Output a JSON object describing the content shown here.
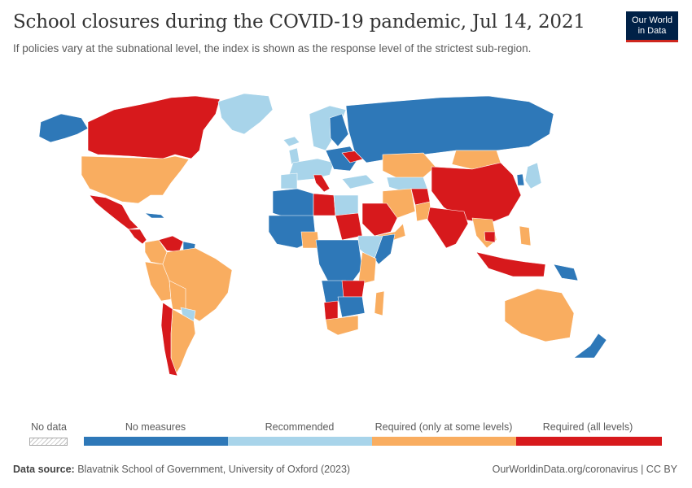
{
  "header": {
    "title": "School closures during the COVID-19 pandemic, Jul 14, 2021",
    "subtitle": "If policies vary at the subnational level, the index is shown as the response level of the strictest sub-region."
  },
  "logo": {
    "line1": "Our World",
    "line2": "in Data",
    "bg": "#002147",
    "accent": "#ce261e"
  },
  "legend": {
    "no_data": {
      "label": "No data"
    },
    "categories": [
      {
        "label": "No measures",
        "color": "#2e78b8"
      },
      {
        "label": "Recommended",
        "color": "#a8d4ea"
      },
      {
        "label": "Required (only at some levels)",
        "color": "#f9ad60"
      },
      {
        "label": "Required (all levels)",
        "color": "#d7191c"
      }
    ]
  },
  "footer": {
    "source_label": "Data source:",
    "source_text": "Blavatnik School of Government, University of Oxford (2023)",
    "right_text": "OurWorldinData.org/coronavirus | CC BY"
  }
}
